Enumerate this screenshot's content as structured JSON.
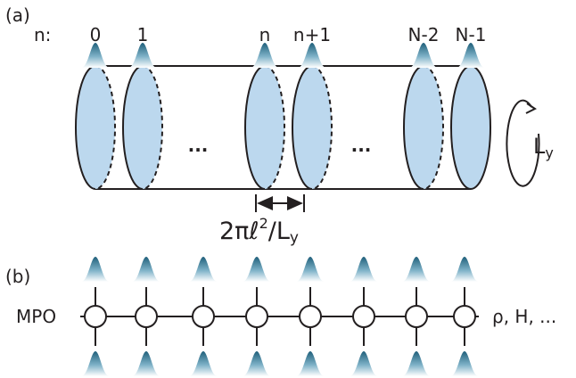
{
  "panel_a": {
    "label": "(a)",
    "index_prefix": "n:",
    "site_labels": [
      "0",
      "1",
      "n",
      "n+1",
      "N-2",
      "N-1"
    ],
    "ellipsis": [
      "...",
      "..."
    ],
    "circumference": {
      "base": "L",
      "sub": "y"
    },
    "spacing": {
      "main": "2πℓ",
      "sup": "2",
      "mid": "/L",
      "sub": "y"
    }
  },
  "panel_b": {
    "label": "(b)",
    "left_label": "MPO",
    "right_label": "ρ, H, ..."
  }
}
